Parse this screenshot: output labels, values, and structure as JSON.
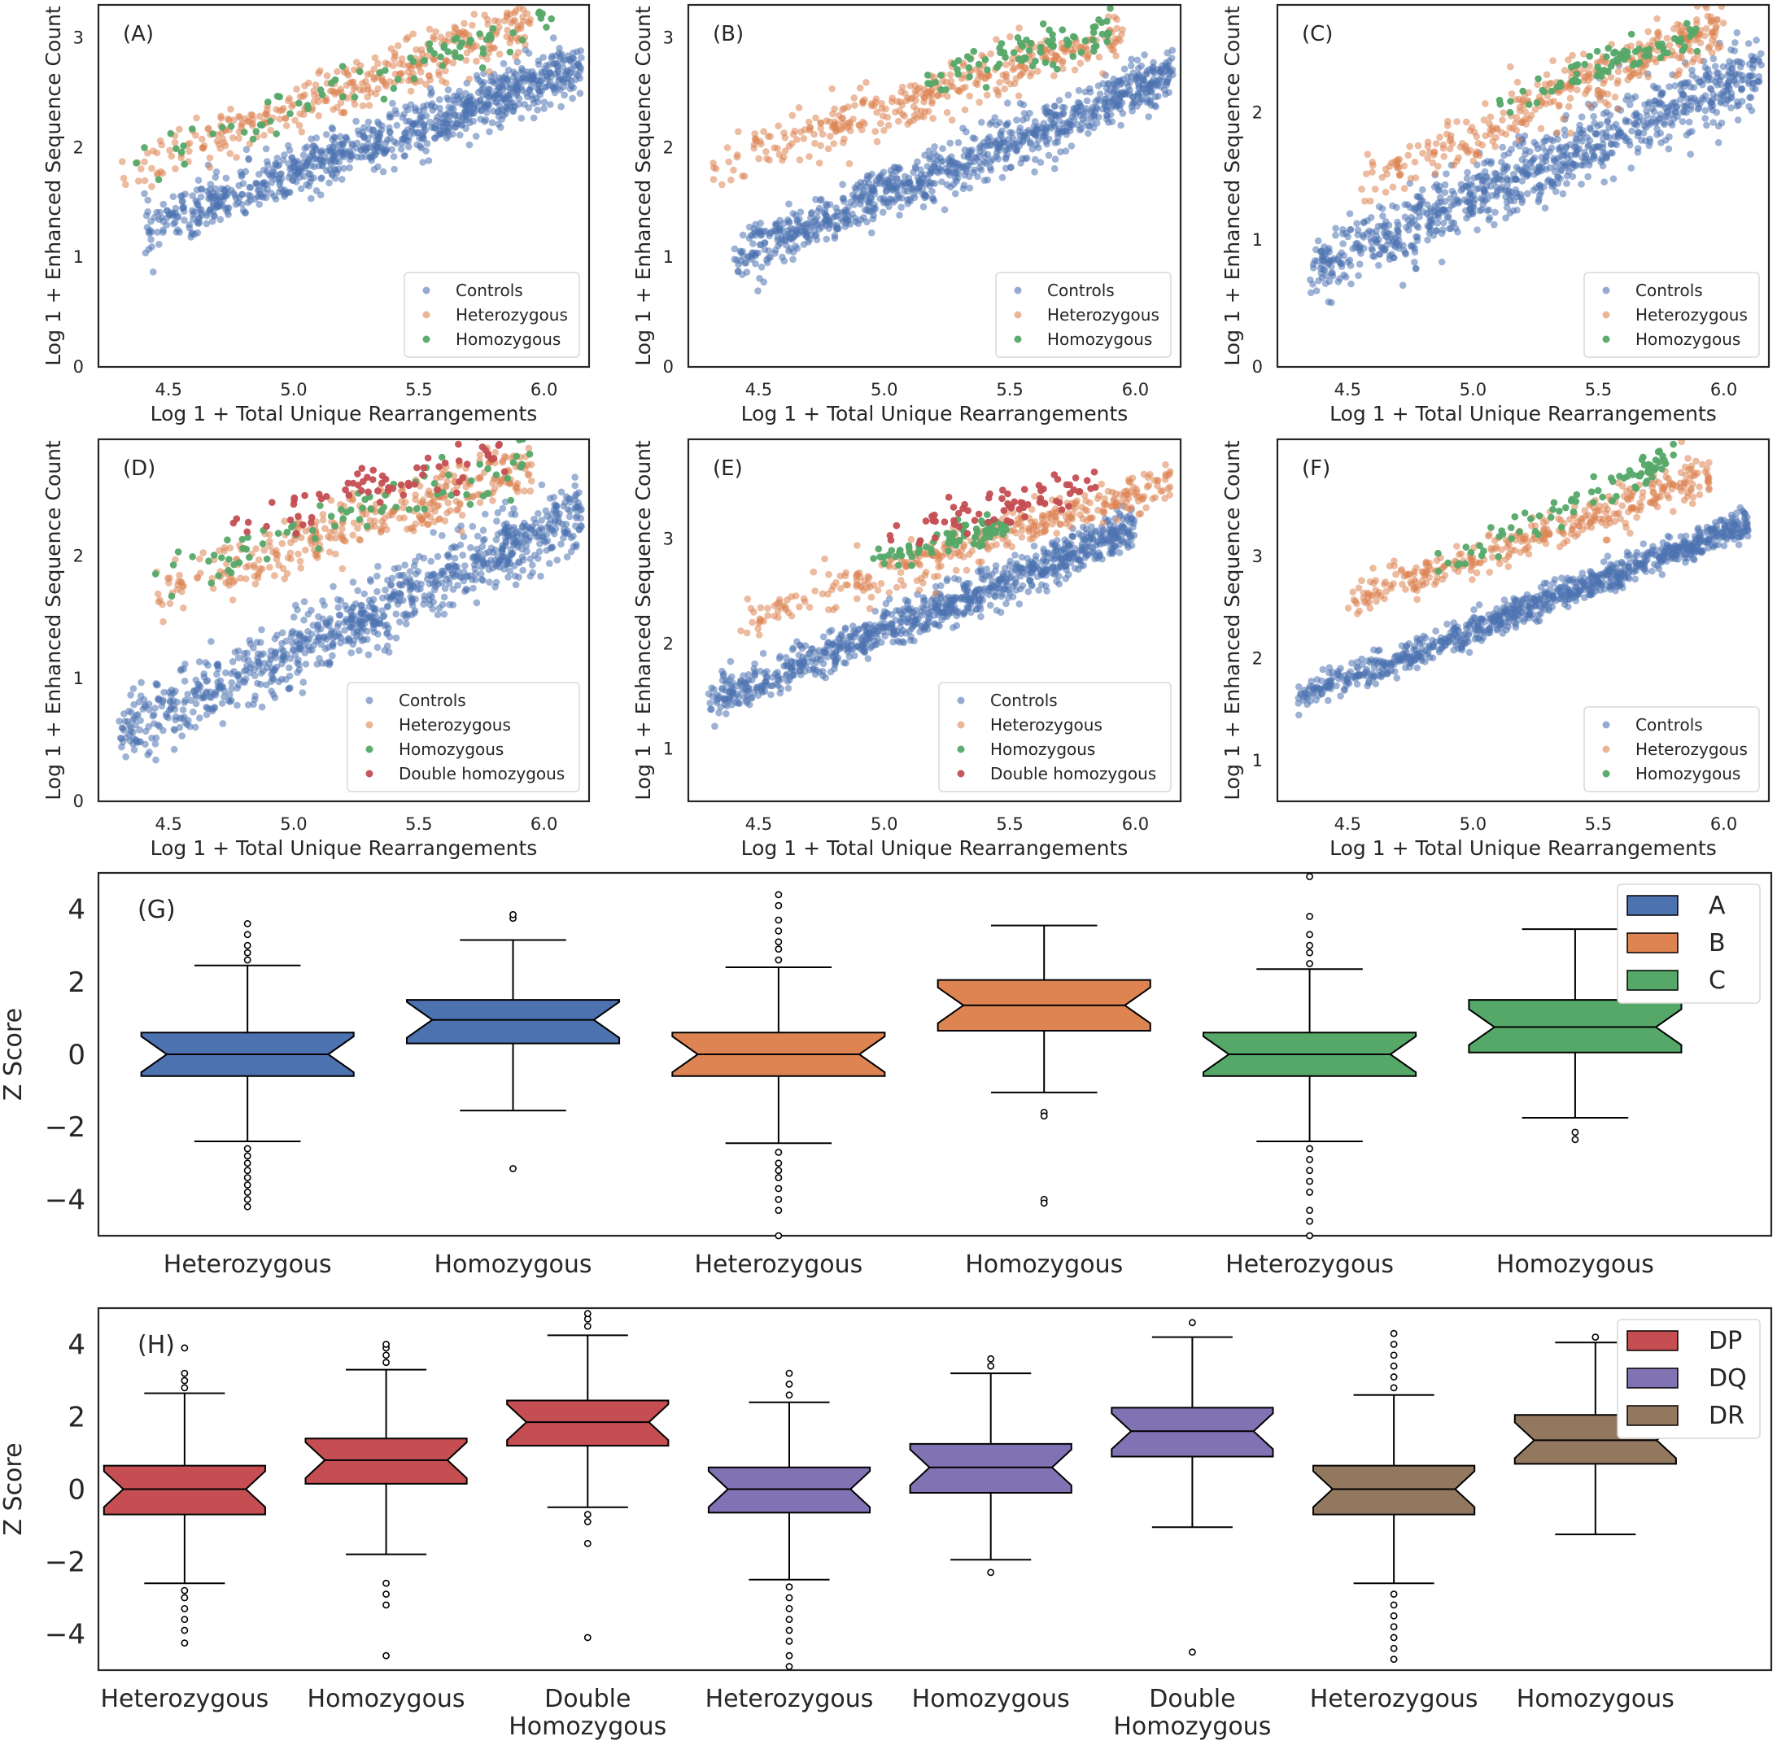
{
  "figure": "Figure",
  "scatter_common": {
    "xlabel": "Log 1 + Total Unique Rearrangements",
    "ylabel": "Log 1 + Enhanced Sequence Count",
    "xticks": [
      "4.5",
      "5.0",
      "5.5",
      "6.0"
    ]
  },
  "boxplot_common": {
    "ylabel": "Z Score",
    "yticks": [
      "4",
      "2",
      "0",
      "−2",
      "−4"
    ]
  },
  "colors": {
    "controls": "#4c72b0",
    "heterozygous": "#dd8452",
    "homozygous": "#55a868",
    "double_homozygous": "#c44e52",
    "A": "#4c72b0",
    "B": "#dd8452",
    "C": "#55a868",
    "DP": "#c44e52",
    "DQ": "#8172b3",
    "DR": "#937860"
  },
  "chart_data": [
    {
      "panel": "(A)",
      "type": "scatter",
      "xlim": [
        4.22,
        6.18
      ],
      "ylim": [
        0,
        3.3
      ],
      "yticks": [
        "0",
        "1",
        "2",
        "3"
      ],
      "legend": [
        "Controls",
        "Heterozygous",
        "Homozygous"
      ],
      "series": [
        {
          "name": "Controls",
          "trend": {
            "x0": 4.4,
            "x1": 6.15,
            "y0": 1.25,
            "y1": 2.75
          },
          "spread": 0.12
        },
        {
          "name": "Heterozygous",
          "trend": {
            "x0": 4.3,
            "x1": 5.95,
            "y0": 1.75,
            "y1": 3.15
          },
          "spread": 0.12
        },
        {
          "name": "Homozygous",
          "trend": {
            "x0": 4.35,
            "x1": 6.05,
            "y0": 1.85,
            "y1": 3.2
          },
          "spread": 0.1
        }
      ]
    },
    {
      "panel": "(B)",
      "type": "scatter",
      "xlim": [
        4.22,
        6.18
      ],
      "ylim": [
        0,
        3.3
      ],
      "yticks": [
        "0",
        "1",
        "2",
        "3"
      ],
      "legend": [
        "Controls",
        "Heterozygous",
        "Homozygous"
      ],
      "series": [
        {
          "name": "Controls",
          "trend": {
            "x0": 4.4,
            "x1": 6.15,
            "y0": 1.0,
            "y1": 2.65
          },
          "spread": 0.12
        },
        {
          "name": "Heterozygous",
          "trend": {
            "x0": 4.3,
            "x1": 5.95,
            "y0": 1.85,
            "y1": 3.05
          },
          "spread": 0.12
        },
        {
          "name": "Homozygous",
          "trend": {
            "x0": 5.1,
            "x1": 5.9,
            "y0": 2.55,
            "y1": 3.1
          },
          "spread": 0.08
        }
      ]
    },
    {
      "panel": "(C)",
      "type": "scatter",
      "xlim": [
        4.22,
        6.18
      ],
      "ylim": [
        0,
        2.85
      ],
      "yticks": [
        "0",
        "1",
        "2"
      ],
      "legend": [
        "Controls",
        "Heterozygous",
        "Homozygous"
      ],
      "series": [
        {
          "name": "Controls",
          "trend": {
            "x0": 4.35,
            "x1": 6.15,
            "y0": 0.75,
            "y1": 2.35
          },
          "spread": 0.14
        },
        {
          "name": "Heterozygous",
          "trend": {
            "x0": 4.55,
            "x1": 6.0,
            "y0": 1.45,
            "y1": 2.7
          },
          "spread": 0.12
        },
        {
          "name": "Homozygous",
          "trend": {
            "x0": 5.1,
            "x1": 5.9,
            "y0": 2.05,
            "y1": 2.65
          },
          "spread": 0.07
        }
      ]
    },
    {
      "panel": "(D)",
      "type": "scatter",
      "xlim": [
        4.22,
        6.18
      ],
      "ylim": [
        0,
        2.95
      ],
      "yticks": [
        "0",
        "1",
        "2"
      ],
      "legend": [
        "Controls",
        "Heterozygous",
        "Homozygous",
        "Double homozygous"
      ],
      "series": [
        {
          "name": "Controls",
          "trend": {
            "x0": 4.3,
            "x1": 6.15,
            "y0": 0.55,
            "y1": 2.35
          },
          "spread": 0.14
        },
        {
          "name": "Heterozygous",
          "trend": {
            "x0": 4.4,
            "x1": 5.95,
            "y0": 1.65,
            "y1": 2.75
          },
          "spread": 0.12
        },
        {
          "name": "Homozygous",
          "trend": {
            "x0": 4.4,
            "x1": 5.95,
            "y0": 1.75,
            "y1": 2.8
          },
          "spread": 0.1
        },
        {
          "name": "Double homozygous",
          "trend": {
            "x0": 4.7,
            "x1": 5.85,
            "y0": 2.2,
            "y1": 2.85
          },
          "spread": 0.09
        }
      ]
    },
    {
      "panel": "(E)",
      "type": "scatter",
      "xlim": [
        4.22,
        6.18
      ],
      "ylim": [
        0.5,
        3.95
      ],
      "yticks": [
        "1",
        "2",
        "3"
      ],
      "legend": [
        "Controls",
        "Heterozygous",
        "Homozygous",
        "Double homozygous"
      ],
      "series": [
        {
          "name": "Controls",
          "trend": {
            "x0": 4.3,
            "x1": 6.0,
            "y0": 1.45,
            "y1": 3.1
          },
          "spread": 0.1
        },
        {
          "name": "Heterozygous",
          "trend": {
            "x0": 4.4,
            "x1": 6.15,
            "y0": 2.2,
            "y1": 3.55
          },
          "spread": 0.1
        },
        {
          "name": "Homozygous",
          "trend": {
            "x0": 4.95,
            "x1": 5.5,
            "y0": 2.8,
            "y1": 3.15
          },
          "spread": 0.07
        },
        {
          "name": "Double homozygous",
          "trend": {
            "x0": 5.0,
            "x1": 5.85,
            "y0": 3.0,
            "y1": 3.55
          },
          "spread": 0.09
        }
      ]
    },
    {
      "panel": "(F)",
      "type": "scatter",
      "xlim": [
        4.22,
        6.18
      ],
      "ylim": [
        0.6,
        4.15
      ],
      "yticks": [
        "1",
        "2",
        "3"
      ],
      "legend": [
        "Controls",
        "Heterozygous",
        "Homozygous"
      ],
      "series": [
        {
          "name": "Controls",
          "trend": {
            "x0": 4.3,
            "x1": 6.1,
            "y0": 1.6,
            "y1": 3.35
          },
          "spread": 0.07
        },
        {
          "name": "Heterozygous",
          "trend": {
            "x0": 4.5,
            "x1": 5.95,
            "y0": 2.55,
            "y1": 3.8
          },
          "spread": 0.1
        },
        {
          "name": "Homozygous",
          "trend": {
            "x0": 4.8,
            "x1": 5.8,
            "y0": 2.85,
            "y1": 3.95
          },
          "spread": 0.08
        }
      ]
    },
    {
      "panel": "(G)",
      "type": "box",
      "ylim": [
        -5,
        5
      ],
      "legend": [
        "A",
        "B",
        "C"
      ],
      "categories": [
        "Heterozygous",
        "Homozygous",
        "Heterozygous",
        "Homozygous",
        "Heterozygous",
        "Homozygous"
      ],
      "boxes": [
        {
          "group": "A",
          "q1": -0.6,
          "median": 0.0,
          "q3": 0.6,
          "whislo": -2.4,
          "whishi": 2.45,
          "outliers": [
            -4.2,
            -4.0,
            -3.8,
            -3.6,
            -3.4,
            -3.2,
            -3.0,
            -2.8,
            -2.6,
            2.6,
            2.8,
            3.0,
            3.3,
            3.6
          ]
        },
        {
          "group": "A",
          "q1": 0.3,
          "median": 0.95,
          "q3": 1.5,
          "whislo": -1.55,
          "whishi": 3.15,
          "outliers": [
            -3.15,
            3.75,
            3.85
          ]
        },
        {
          "group": "B",
          "q1": -0.6,
          "median": 0.0,
          "q3": 0.6,
          "whislo": -2.45,
          "whishi": 2.4,
          "outliers": [
            -5.0,
            -4.3,
            -4.0,
            -3.7,
            -3.4,
            -3.2,
            -3.0,
            -2.7,
            2.6,
            2.9,
            3.1,
            3.4,
            3.7,
            4.1,
            4.4
          ]
        },
        {
          "group": "B",
          "q1": 0.65,
          "median": 1.35,
          "q3": 2.05,
          "whislo": -1.05,
          "whishi": 3.55,
          "outliers": [
            -1.6,
            -1.7,
            -4.0,
            -4.1
          ]
        },
        {
          "group": "C",
          "q1": -0.6,
          "median": 0.0,
          "q3": 0.6,
          "whislo": -2.4,
          "whishi": 2.35,
          "outliers": [
            -5.0,
            -4.6,
            -4.3,
            -3.8,
            -3.5,
            -3.2,
            -2.9,
            -2.6,
            2.5,
            2.8,
            3.0,
            3.3,
            3.8,
            4.9
          ]
        },
        {
          "group": "C",
          "q1": 0.05,
          "median": 0.75,
          "q3": 1.5,
          "whislo": -1.75,
          "whishi": 3.45,
          "outliers": [
            -2.15,
            -2.35
          ]
        }
      ]
    },
    {
      "panel": "(H)",
      "type": "box",
      "ylim": [
        -5,
        5
      ],
      "legend": [
        "DP",
        "DQ",
        "DR"
      ],
      "categories": [
        "Heterozygous",
        "Homozygous",
        "Double\nHomozygous",
        "Heterozygous",
        "Homozygous",
        "Double\nHomozygous",
        "Heterozygous",
        "Homozygous"
      ],
      "boxes": [
        {
          "group": "DP",
          "q1": -0.7,
          "median": 0.0,
          "q3": 0.65,
          "whislo": -2.6,
          "whishi": 2.65,
          "outliers": [
            -4.25,
            -3.9,
            -3.6,
            -3.3,
            -3.0,
            -2.8,
            2.8,
            3.0,
            3.2,
            3.9
          ]
        },
        {
          "group": "DP",
          "q1": 0.15,
          "median": 0.8,
          "q3": 1.4,
          "whislo": -1.8,
          "whishi": 3.3,
          "outliers": [
            -4.6,
            -3.2,
            -2.9,
            -2.6,
            3.5,
            3.7,
            3.9,
            4.0
          ]
        },
        {
          "group": "DP",
          "q1": 1.2,
          "median": 1.85,
          "q3": 2.45,
          "whislo": -0.5,
          "whishi": 4.25,
          "outliers": [
            -4.1,
            -1.5,
            -0.9,
            -0.7,
            4.5,
            4.7,
            4.85
          ]
        },
        {
          "group": "DQ",
          "q1": -0.65,
          "median": 0.0,
          "q3": 0.6,
          "whislo": -2.5,
          "whishi": 2.4,
          "outliers": [
            -4.9,
            -4.6,
            -4.2,
            -3.9,
            -3.6,
            -3.3,
            -3.0,
            -2.7,
            2.6,
            2.9,
            3.2
          ]
        },
        {
          "group": "DQ",
          "q1": -0.1,
          "median": 0.6,
          "q3": 1.25,
          "whislo": -1.95,
          "whishi": 3.2,
          "outliers": [
            -2.3,
            3.4,
            3.6
          ]
        },
        {
          "group": "DQ",
          "q1": 0.9,
          "median": 1.6,
          "q3": 2.25,
          "whislo": -1.05,
          "whishi": 4.2,
          "outliers": [
            -4.5,
            4.6
          ]
        },
        {
          "group": "DR",
          "q1": -0.7,
          "median": 0.0,
          "q3": 0.65,
          "whislo": -2.6,
          "whishi": 2.6,
          "outliers": [
            -4.7,
            -4.4,
            -4.1,
            -3.8,
            -3.5,
            -3.2,
            -2.9,
            2.8,
            3.1,
            3.4,
            3.7,
            4.0,
            4.3
          ]
        },
        {
          "group": "DR",
          "q1": 0.7,
          "median": 1.35,
          "q3": 2.05,
          "whislo": -1.25,
          "whishi": 4.05,
          "outliers": [
            4.2
          ]
        }
      ]
    }
  ]
}
